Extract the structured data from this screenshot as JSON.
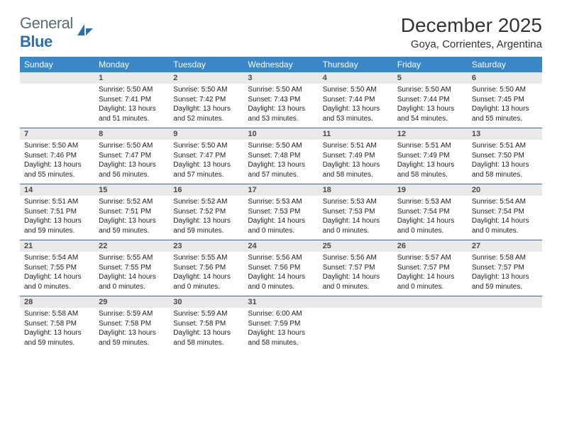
{
  "logo": {
    "text_general": "General",
    "text_blue": "Blue",
    "sail_color": "#2f6fa8"
  },
  "title": "December 2025",
  "location": "Goya, Corrientes, Argentina",
  "headers": [
    "Sunday",
    "Monday",
    "Tuesday",
    "Wednesday",
    "Thursday",
    "Friday",
    "Saturday"
  ],
  "colors": {
    "header_bg": "#3b87c8",
    "header_text": "#ffffff",
    "daynum_bg": "#e9e9ea",
    "border": "#3b6a94"
  },
  "weeks": [
    [
      {
        "day": "",
        "sunrise": "",
        "sunset": "",
        "daylight": ""
      },
      {
        "day": "1",
        "sunrise": "Sunrise: 5:50 AM",
        "sunset": "Sunset: 7:41 PM",
        "daylight": "Daylight: 13 hours and 51 minutes."
      },
      {
        "day": "2",
        "sunrise": "Sunrise: 5:50 AM",
        "sunset": "Sunset: 7:42 PM",
        "daylight": "Daylight: 13 hours and 52 minutes."
      },
      {
        "day": "3",
        "sunrise": "Sunrise: 5:50 AM",
        "sunset": "Sunset: 7:43 PM",
        "daylight": "Daylight: 13 hours and 53 minutes."
      },
      {
        "day": "4",
        "sunrise": "Sunrise: 5:50 AM",
        "sunset": "Sunset: 7:44 PM",
        "daylight": "Daylight: 13 hours and 53 minutes."
      },
      {
        "day": "5",
        "sunrise": "Sunrise: 5:50 AM",
        "sunset": "Sunset: 7:44 PM",
        "daylight": "Daylight: 13 hours and 54 minutes."
      },
      {
        "day": "6",
        "sunrise": "Sunrise: 5:50 AM",
        "sunset": "Sunset: 7:45 PM",
        "daylight": "Daylight: 13 hours and 55 minutes."
      }
    ],
    [
      {
        "day": "7",
        "sunrise": "Sunrise: 5:50 AM",
        "sunset": "Sunset: 7:46 PM",
        "daylight": "Daylight: 13 hours and 55 minutes."
      },
      {
        "day": "8",
        "sunrise": "Sunrise: 5:50 AM",
        "sunset": "Sunset: 7:47 PM",
        "daylight": "Daylight: 13 hours and 56 minutes."
      },
      {
        "day": "9",
        "sunrise": "Sunrise: 5:50 AM",
        "sunset": "Sunset: 7:47 PM",
        "daylight": "Daylight: 13 hours and 57 minutes."
      },
      {
        "day": "10",
        "sunrise": "Sunrise: 5:50 AM",
        "sunset": "Sunset: 7:48 PM",
        "daylight": "Daylight: 13 hours and 57 minutes."
      },
      {
        "day": "11",
        "sunrise": "Sunrise: 5:51 AM",
        "sunset": "Sunset: 7:49 PM",
        "daylight": "Daylight: 13 hours and 58 minutes."
      },
      {
        "day": "12",
        "sunrise": "Sunrise: 5:51 AM",
        "sunset": "Sunset: 7:49 PM",
        "daylight": "Daylight: 13 hours and 58 minutes."
      },
      {
        "day": "13",
        "sunrise": "Sunrise: 5:51 AM",
        "sunset": "Sunset: 7:50 PM",
        "daylight": "Daylight: 13 hours and 58 minutes."
      }
    ],
    [
      {
        "day": "14",
        "sunrise": "Sunrise: 5:51 AM",
        "sunset": "Sunset: 7:51 PM",
        "daylight": "Daylight: 13 hours and 59 minutes."
      },
      {
        "day": "15",
        "sunrise": "Sunrise: 5:52 AM",
        "sunset": "Sunset: 7:51 PM",
        "daylight": "Daylight: 13 hours and 59 minutes."
      },
      {
        "day": "16",
        "sunrise": "Sunrise: 5:52 AM",
        "sunset": "Sunset: 7:52 PM",
        "daylight": "Daylight: 13 hours and 59 minutes."
      },
      {
        "day": "17",
        "sunrise": "Sunrise: 5:53 AM",
        "sunset": "Sunset: 7:53 PM",
        "daylight": "Daylight: 14 hours and 0 minutes."
      },
      {
        "day": "18",
        "sunrise": "Sunrise: 5:53 AM",
        "sunset": "Sunset: 7:53 PM",
        "daylight": "Daylight: 14 hours and 0 minutes."
      },
      {
        "day": "19",
        "sunrise": "Sunrise: 5:53 AM",
        "sunset": "Sunset: 7:54 PM",
        "daylight": "Daylight: 14 hours and 0 minutes."
      },
      {
        "day": "20",
        "sunrise": "Sunrise: 5:54 AM",
        "sunset": "Sunset: 7:54 PM",
        "daylight": "Daylight: 14 hours and 0 minutes."
      }
    ],
    [
      {
        "day": "21",
        "sunrise": "Sunrise: 5:54 AM",
        "sunset": "Sunset: 7:55 PM",
        "daylight": "Daylight: 14 hours and 0 minutes."
      },
      {
        "day": "22",
        "sunrise": "Sunrise: 5:55 AM",
        "sunset": "Sunset: 7:55 PM",
        "daylight": "Daylight: 14 hours and 0 minutes."
      },
      {
        "day": "23",
        "sunrise": "Sunrise: 5:55 AM",
        "sunset": "Sunset: 7:56 PM",
        "daylight": "Daylight: 14 hours and 0 minutes."
      },
      {
        "day": "24",
        "sunrise": "Sunrise: 5:56 AM",
        "sunset": "Sunset: 7:56 PM",
        "daylight": "Daylight: 14 hours and 0 minutes."
      },
      {
        "day": "25",
        "sunrise": "Sunrise: 5:56 AM",
        "sunset": "Sunset: 7:57 PM",
        "daylight": "Daylight: 14 hours and 0 minutes."
      },
      {
        "day": "26",
        "sunrise": "Sunrise: 5:57 AM",
        "sunset": "Sunset: 7:57 PM",
        "daylight": "Daylight: 14 hours and 0 minutes."
      },
      {
        "day": "27",
        "sunrise": "Sunrise: 5:58 AM",
        "sunset": "Sunset: 7:57 PM",
        "daylight": "Daylight: 13 hours and 59 minutes."
      }
    ],
    [
      {
        "day": "28",
        "sunrise": "Sunrise: 5:58 AM",
        "sunset": "Sunset: 7:58 PM",
        "daylight": "Daylight: 13 hours and 59 minutes."
      },
      {
        "day": "29",
        "sunrise": "Sunrise: 5:59 AM",
        "sunset": "Sunset: 7:58 PM",
        "daylight": "Daylight: 13 hours and 59 minutes."
      },
      {
        "day": "30",
        "sunrise": "Sunrise: 5:59 AM",
        "sunset": "Sunset: 7:58 PM",
        "daylight": "Daylight: 13 hours and 58 minutes."
      },
      {
        "day": "31",
        "sunrise": "Sunrise: 6:00 AM",
        "sunset": "Sunset: 7:59 PM",
        "daylight": "Daylight: 13 hours and 58 minutes."
      },
      {
        "day": "",
        "sunrise": "",
        "sunset": "",
        "daylight": ""
      },
      {
        "day": "",
        "sunrise": "",
        "sunset": "",
        "daylight": ""
      },
      {
        "day": "",
        "sunrise": "",
        "sunset": "",
        "daylight": ""
      }
    ]
  ]
}
